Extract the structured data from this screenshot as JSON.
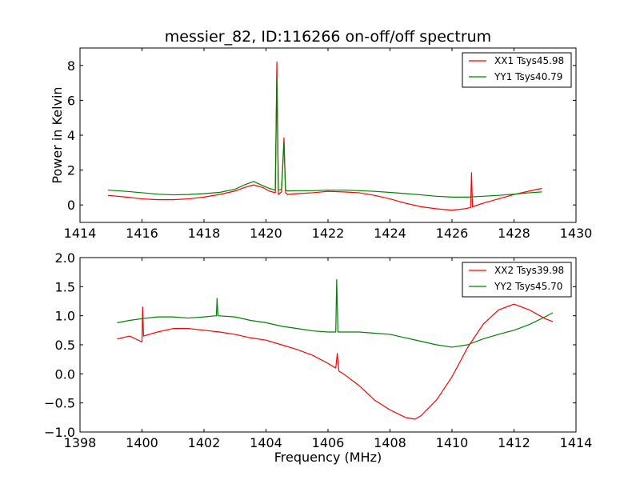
{
  "chart_data": [
    {
      "type": "line",
      "title": "messier_82, ID:116266 on-off/off spectrum",
      "xlabel": "",
      "ylabel": "Power in Kelvin",
      "xlim": [
        1414,
        1430
      ],
      "ylim": [
        -1,
        9
      ],
      "xticks": [
        1414,
        1416,
        1418,
        1420,
        1422,
        1424,
        1426,
        1428,
        1430
      ],
      "yticks": [
        0,
        2,
        4,
        6,
        8
      ],
      "xtick_labels": [
        "1414",
        "1416",
        "1418",
        "1420",
        "1422",
        "1424",
        "1426",
        "1428",
        "1430"
      ],
      "ytick_labels": [
        "0",
        "2",
        "4",
        "6",
        "8"
      ],
      "legend_position": "top-right",
      "grid": false,
      "series": [
        {
          "name": "XX1 Tsys45.98",
          "color": "#ff0000",
          "x": [
            1414.9,
            1415.5,
            1416,
            1416.5,
            1417,
            1417.5,
            1418,
            1418.5,
            1419,
            1419.3,
            1419.6,
            1419.9,
            1420.1,
            1420.3,
            1420.35,
            1420.4,
            1420.5,
            1420.58,
            1420.63,
            1420.7,
            1421,
            1421.5,
            1422,
            1422.5,
            1423,
            1423.5,
            1424,
            1424.5,
            1425,
            1425.5,
            1426,
            1426.4,
            1426.6,
            1426.63,
            1426.66,
            1427,
            1427.5,
            1428,
            1428.5,
            1428.9
          ],
          "y": [
            0.55,
            0.45,
            0.35,
            0.3,
            0.3,
            0.35,
            0.45,
            0.6,
            0.8,
            1.0,
            1.15,
            1.0,
            0.8,
            0.7,
            8.2,
            0.6,
            0.75,
            3.85,
            0.7,
            0.6,
            0.65,
            0.7,
            0.78,
            0.75,
            0.7,
            0.55,
            0.35,
            0.1,
            -0.1,
            -0.22,
            -0.3,
            -0.22,
            -0.15,
            1.85,
            -0.1,
            0.1,
            0.35,
            0.6,
            0.8,
            0.95
          ]
        },
        {
          "name": "YY1 Tsys40.79",
          "color": "#008000",
          "x": [
            1414.9,
            1415.5,
            1416,
            1416.5,
            1417,
            1417.5,
            1418,
            1418.5,
            1419,
            1419.3,
            1419.6,
            1419.9,
            1420.1,
            1420.3,
            1420.35,
            1420.4,
            1420.5,
            1420.58,
            1420.63,
            1420.7,
            1421,
            1421.5,
            1422,
            1422.5,
            1423,
            1423.5,
            1424,
            1424.5,
            1425,
            1425.5,
            1426,
            1426.5,
            1427,
            1427.5,
            1428,
            1428.5,
            1428.9
          ],
          "y": [
            0.85,
            0.78,
            0.7,
            0.62,
            0.58,
            0.6,
            0.65,
            0.72,
            0.9,
            1.15,
            1.35,
            1.1,
            0.95,
            0.85,
            7.3,
            0.85,
            0.9,
            3.6,
            0.85,
            0.8,
            0.82,
            0.82,
            0.85,
            0.85,
            0.82,
            0.78,
            0.72,
            0.65,
            0.58,
            0.5,
            0.45,
            0.45,
            0.5,
            0.55,
            0.62,
            0.7,
            0.75
          ]
        }
      ]
    },
    {
      "type": "line",
      "title": "",
      "xlabel": "Frequency (MHz)",
      "ylabel": "",
      "xlim": [
        1398,
        1414
      ],
      "ylim": [
        -1.0,
        2.0
      ],
      "xticks": [
        1398,
        1400,
        1402,
        1404,
        1406,
        1408,
        1410,
        1412,
        1414
      ],
      "yticks": [
        -1.0,
        -0.5,
        0.0,
        0.5,
        1.0,
        1.5,
        2.0
      ],
      "xtick_labels": [
        "1398",
        "1400",
        "1402",
        "1404",
        "1406",
        "1408",
        "1410",
        "1412",
        "1414"
      ],
      "ytick_labels": [
        "−1.0",
        "−0.5",
        "0.0",
        "0.5",
        "1.0",
        "1.5",
        "2.0"
      ],
      "legend_position": "top-right",
      "grid": false,
      "series": [
        {
          "name": "XX2 Tsys39.98",
          "color": "#ff0000",
          "x": [
            1399.2,
            1399.6,
            1400,
            1400.02,
            1400.05,
            1400.5,
            1401,
            1401.5,
            1402,
            1402.5,
            1403,
            1403.5,
            1404,
            1404.5,
            1405,
            1405.5,
            1406,
            1406.25,
            1406.3,
            1406.35,
            1406.5,
            1407,
            1407.5,
            1408,
            1408.5,
            1408.8,
            1409,
            1409.5,
            1410,
            1410.5,
            1411,
            1411.5,
            1412,
            1412.5,
            1413,
            1413.25
          ],
          "y": [
            0.6,
            0.65,
            0.55,
            1.15,
            0.65,
            0.72,
            0.78,
            0.78,
            0.75,
            0.72,
            0.68,
            0.62,
            0.58,
            0.5,
            0.42,
            0.32,
            0.18,
            0.1,
            0.35,
            0.05,
            0.0,
            -0.2,
            -0.45,
            -0.62,
            -0.75,
            -0.78,
            -0.72,
            -0.45,
            -0.05,
            0.45,
            0.85,
            1.1,
            1.2,
            1.1,
            0.95,
            0.9
          ]
        },
        {
          "name": "YY2 Tsys45.70",
          "color": "#008000",
          "x": [
            1399.2,
            1399.6,
            1400,
            1400.5,
            1401,
            1401.5,
            1402,
            1402.4,
            1402.42,
            1402.45,
            1403,
            1403.5,
            1404,
            1404.5,
            1405,
            1405.5,
            1406,
            1406.25,
            1406.28,
            1406.32,
            1406.5,
            1407,
            1407.5,
            1408,
            1408.5,
            1409,
            1409.5,
            1410,
            1410.5,
            1411,
            1411.5,
            1412,
            1412.5,
            1413,
            1413.25
          ],
          "y": [
            0.88,
            0.92,
            0.95,
            0.98,
            0.98,
            0.96,
            0.98,
            1.0,
            1.3,
            1.0,
            0.98,
            0.92,
            0.88,
            0.82,
            0.78,
            0.74,
            0.72,
            0.72,
            1.62,
            0.72,
            0.72,
            0.72,
            0.7,
            0.68,
            0.62,
            0.56,
            0.5,
            0.46,
            0.5,
            0.6,
            0.68,
            0.75,
            0.85,
            0.98,
            1.05
          ]
        }
      ]
    }
  ]
}
